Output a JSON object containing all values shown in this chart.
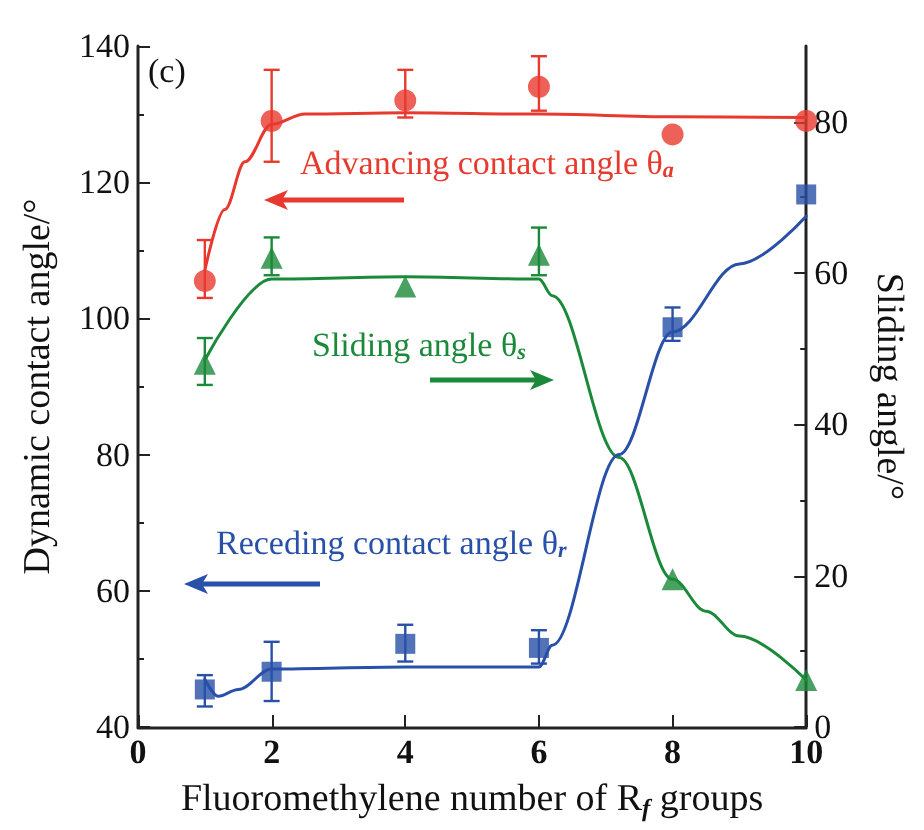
{
  "chart_data": {
    "type": "scatter",
    "xlabel": "Fluoromethylene number of R$_{f}$ groups",
    "ylabel": "Dynamic contact angle/°",
    "y2label": "Sliding angle/°",
    "annotations": [
      "(c)"
    ],
    "xlim": [
      0,
      10
    ],
    "xticks": [
      0,
      2,
      4,
      6,
      8,
      10
    ],
    "ylim": [
      40,
      140
    ],
    "yticks": [
      40,
      60,
      80,
      100,
      120,
      140
    ],
    "y2lim": [
      0,
      90
    ],
    "y2ticks": [
      0,
      20,
      40,
      60,
      80
    ],
    "grid": false,
    "legend": false,
    "series": [
      {
        "name": "Advancing contact angle θ$_{a}$",
        "marker": "circle",
        "color": "#e8392e",
        "x": [
          1,
          2,
          4,
          6,
          8,
          10
        ],
        "values": [
          105.5,
          129,
          132,
          134,
          127,
          129
        ],
        "errors": [
          [
            103,
            111.5
          ],
          [
            123,
            136.5
          ],
          [
            129.5,
            136.5
          ],
          [
            130.5,
            138.5
          ],
          null,
          null
        ]
      },
      {
        "type": "line",
        "marker": "none",
        "color": "#e8392e",
        "x": [
          1,
          1.3,
          1.6,
          2,
          2.5,
          4,
          6,
          8,
          10
        ],
        "values": [
          107,
          116,
          123,
          128.5,
          130,
          130.2,
          130,
          129.6,
          129.5
        ]
      },
      {
        "name": "Sliding angle θ$_{s}$",
        "axis": "y2",
        "marker": "triangle",
        "color": "#1a8a3a",
        "x": [
          1,
          2,
          4,
          6,
          8,
          10
        ],
        "values": [
          48,
          62,
          58.2,
          62.4,
          19.5,
          6.2
        ],
        "errors": [
          [
            45.2,
            51.4
          ],
          [
            59.7,
            64.7
          ],
          null,
          [
            59.7,
            66
          ],
          null,
          null
        ]
      },
      {
        "type": "line",
        "axis": "y2",
        "marker": "none",
        "color": "#1a8a3a",
        "x": [
          1,
          2,
          4,
          6,
          6.2,
          7.2,
          8,
          8.5,
          9,
          10
        ],
        "values": [
          48.5,
          59.2,
          59.5,
          59.2,
          57,
          35.6,
          19.5,
          15.3,
          12,
          6.2
        ]
      },
      {
        "name": "Receding contact angle θ$_{r}$",
        "marker": "square",
        "color": "#2850a8",
        "x": [
          1,
          2,
          4,
          6,
          8,
          10
        ],
        "values": [
          45.5,
          48.1,
          52.2,
          51.6,
          98.7,
          118.2
        ],
        "errors": [
          [
            43,
            47.6
          ],
          [
            43.8,
            52.5
          ],
          [
            49.6,
            55
          ],
          [
            49.3,
            54.2
          ],
          [
            96.7,
            101.6
          ],
          null
        ]
      },
      {
        "type": "line",
        "marker": "none",
        "color": "#2850a8",
        "x": [
          1,
          1.2,
          1.5,
          2,
          4,
          6,
          6.2,
          7.2,
          8,
          9,
          10
        ],
        "values": [
          47,
          44.5,
          45.5,
          48.5,
          48.8,
          48.8,
          52,
          80,
          98,
          108,
          115
        ]
      }
    ]
  }
}
